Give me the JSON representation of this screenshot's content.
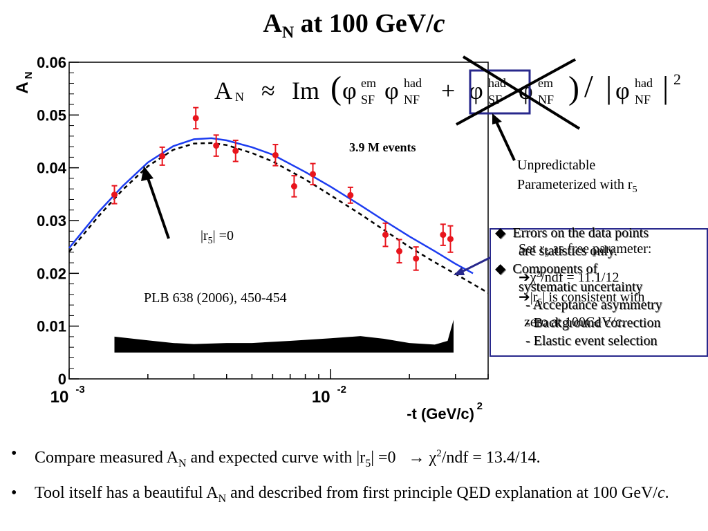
{
  "title": {
    "main": "A",
    "sub": "N",
    "rest": " at 100 GeV/",
    "italic": "c"
  },
  "chart_data": {
    "type": "scatter",
    "xlabel": "-t (GeV/c)",
    "xlabel_sup": "2",
    "ylabel": "A",
    "ylabel_sub": "N",
    "x_scale": "log",
    "xlim": [
      0.001,
      0.04
    ],
    "ylim": [
      0,
      0.06
    ],
    "x_tick_labels": [
      {
        "base": "10",
        "exp": "-3",
        "value": 0.001
      },
      {
        "base": "10",
        "exp": "-2",
        "value": 0.01
      }
    ],
    "y_ticks": [
      "0",
      "0.01",
      "0.02",
      "0.03",
      "0.04",
      "0.05",
      "0.06"
    ],
    "series": [
      {
        "kind": "points",
        "color": "#e8141c",
        "x": [
          0.00149,
          0.00227,
          0.00305,
          0.00365,
          0.00433,
          0.00615,
          0.00725,
          0.00855,
          0.0119,
          0.0162,
          0.0183,
          0.0212,
          0.0269,
          0.0287
        ],
        "y": [
          0.0349,
          0.0422,
          0.0494,
          0.0442,
          0.0432,
          0.0424,
          0.0365,
          0.0388,
          0.0348,
          0.0273,
          0.0242,
          0.0228,
          0.0273,
          0.0265
        ],
        "err": [
          0.0017,
          0.0017,
          0.002,
          0.002,
          0.002,
          0.002,
          0.002,
          0.002,
          0.0015,
          0.0022,
          0.0022,
          0.0022,
          0.002,
          0.0025
        ]
      },
      {
        "kind": "curve",
        "color": "#1c3cf0",
        "style": "solid",
        "x": [
          0.001,
          0.0013,
          0.0016,
          0.002,
          0.0025,
          0.003,
          0.0035,
          0.004,
          0.005,
          0.006,
          0.008,
          0.01,
          0.013,
          0.016,
          0.02,
          0.025,
          0.03,
          0.035
        ],
        "y": [
          0.0248,
          0.0317,
          0.0365,
          0.041,
          0.0441,
          0.0454,
          0.0456,
          0.0452,
          0.0439,
          0.0425,
          0.0392,
          0.0364,
          0.0329,
          0.03,
          0.027,
          0.0242,
          0.0218,
          0.02
        ]
      },
      {
        "kind": "curve",
        "color": "#000000",
        "style": "dashed",
        "x": [
          0.001,
          0.0013,
          0.0016,
          0.002,
          0.0025,
          0.003,
          0.0035,
          0.004,
          0.005,
          0.006,
          0.008,
          0.01,
          0.013,
          0.016,
          0.02,
          0.025,
          0.03,
          0.04
        ],
        "y": [
          0.0241,
          0.0309,
          0.0358,
          0.0403,
          0.0434,
          0.0446,
          0.0447,
          0.0443,
          0.0428,
          0.0412,
          0.0378,
          0.0348,
          0.0312,
          0.0282,
          0.025,
          0.0221,
          0.0199,
          0.0163
        ]
      }
    ],
    "systematic_band": {
      "color": "#000000",
      "x": [
        0.00149,
        0.002,
        0.0025,
        0.003,
        0.004,
        0.005,
        0.007,
        0.01,
        0.013,
        0.016,
        0.02,
        0.025,
        0.028,
        0.0295
      ],
      "upper": [
        0.008,
        0.0073,
        0.0068,
        0.0066,
        0.0068,
        0.0068,
        0.0072,
        0.0077,
        0.0081,
        0.0076,
        0.0068,
        0.0065,
        0.0072,
        0.0112
      ],
      "lower": [
        0.005,
        0.005,
        0.005,
        0.005,
        0.005,
        0.005,
        0.005,
        0.005,
        0.005,
        0.005,
        0.005,
        0.005,
        0.005,
        0.005
      ]
    }
  },
  "formula": {
    "lhs": "A",
    "lhs_sub": "N",
    "approx": "≈",
    "im": "Im",
    "phi": "φ",
    "sf_em": "em",
    "sf_em_sub": "SF",
    "nf_had": "had",
    "nf_had_sub": "NF",
    "plus": "+",
    "sf_had": "had",
    "sf_had_sub": "SF",
    "nf_em": "em",
    "nf_em_sub": "NF",
    "den_sup": "had",
    "den_sub": "NF",
    "power": "2"
  },
  "annotations": {
    "events": "3.9 M events",
    "unpred_line1": "Unpredictable",
    "unpred_line2": "Parameterized with r",
    "unpred_sub": "5",
    "r5_label": "|r",
    "r5_sub": "5",
    "r5_rest": "| =0",
    "plb": "PLB 638 (2006), 450-454"
  },
  "info_box": {
    "back_line1": "Set r",
    "back_line1_sub": "5",
    "back_line1_rest": " as free parameter:",
    "back_line2": "χ",
    "back_line2_sup": "2",
    "back_line2_rest": "/ndf = 11.1/12",
    "back_line3": "|r",
    "back_line3_sub": "5",
    "back_line3_rest": "| is consistent with",
    "back_line4": "zero at 100GeV/c.",
    "front_line1": "Errors on the data points",
    "front_line2": "are statistics only.",
    "front_line3": "Components of",
    "front_line4": "systematic uncertainty",
    "front_line5": "- Acceptance asymmetry",
    "front_line6": "- Background correction",
    "front_line7": "- Elastic event selection"
  },
  "bullets": {
    "b1_a": "Compare measured A",
    "b1_sub": "N",
    "b1_b": " and expected curve with |r",
    "b1_sub2": "5",
    "b1_c": "| =0   ",
    "b1_arrow": "→",
    "b1_d": " χ",
    "b1_sup": "2",
    "b1_e": "/ndf = 13.4/14.",
    "b2_a": "Tool itself has a beautiful A",
    "b2_sub": "N",
    "b2_b": " and described from first principle QED explanation at 100 GeV/",
    "b2_italic": "c",
    "b2_c": "."
  }
}
